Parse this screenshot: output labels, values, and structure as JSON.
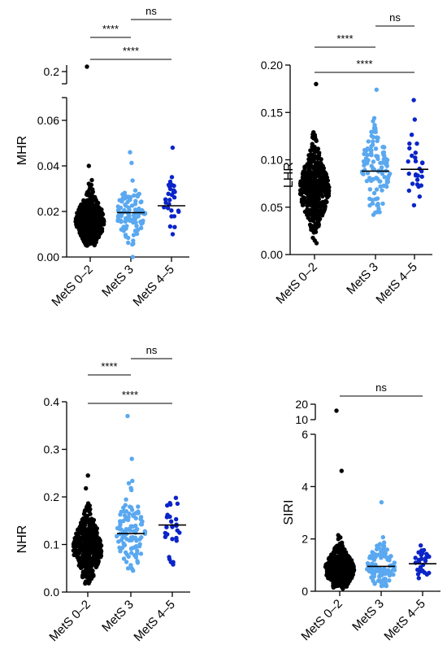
{
  "chart_data": [
    {
      "type": "scatter",
      "ylabel": "MHR",
      "categories": [
        "MetS 0–2",
        "MetS 3",
        "MetS 4–5"
      ],
      "colors": [
        "#000000",
        "#5aa8f0",
        "#0a24c8"
      ],
      "ylim": [
        0,
        0.07
      ],
      "axis_break": {
        "lower_max": 0.07,
        "upper_tick": 0.2
      },
      "yticks": [
        0.0,
        0.02,
        0.04,
        0.06
      ],
      "ytick_labels": [
        "0.00",
        "0.02",
        "0.04",
        "0.06"
      ],
      "upper_tick_label": "0.2",
      "medians": [
        0.016,
        0.0195,
        0.0225
      ],
      "series": [
        {
          "n": 430,
          "min": 0.005,
          "max": 0.04,
          "q1": 0.012,
          "median": 0.016,
          "q3": 0.02,
          "outliers": [
            0.22
          ]
        },
        {
          "n": 110,
          "min": 0.0,
          "max": 0.046,
          "q1": 0.015,
          "median": 0.0195,
          "q3": 0.024,
          "outliers": []
        },
        {
          "n": 28,
          "min": 0.01,
          "max": 0.048,
          "q1": 0.018,
          "median": 0.0225,
          "q3": 0.026,
          "outliers": []
        }
      ],
      "significance": [
        {
          "from": 0,
          "to": 1,
          "label": "****"
        },
        {
          "from": 1,
          "to": 2,
          "label": "ns"
        },
        {
          "from": 0,
          "to": 2,
          "label": "****"
        }
      ]
    },
    {
      "type": "scatter",
      "ylabel": "LHR",
      "categories": [
        "MetS 0–2",
        "MetS 3",
        "MetS 4–5"
      ],
      "colors": [
        "#000000",
        "#5aa8f0",
        "#0a24c8"
      ],
      "ylim": [
        0,
        0.2
      ],
      "yticks": [
        0.0,
        0.05,
        0.1,
        0.15,
        0.2
      ],
      "ytick_labels": [
        "0.00",
        "0.05",
        "0.10",
        "0.15",
        "0.20"
      ],
      "medians": [
        0.069,
        0.088,
        0.09
      ],
      "series": [
        {
          "n": 430,
          "min": 0.012,
          "max": 0.18,
          "q1": 0.055,
          "median": 0.069,
          "q3": 0.084,
          "outliers": []
        },
        {
          "n": 110,
          "min": 0.042,
          "max": 0.174,
          "q1": 0.072,
          "median": 0.088,
          "q3": 0.104,
          "outliers": []
        },
        {
          "n": 28,
          "min": 0.052,
          "max": 0.163,
          "q1": 0.075,
          "median": 0.09,
          "q3": 0.11,
          "outliers": []
        }
      ],
      "significance": [
        {
          "from": 0,
          "to": 1,
          "label": "****"
        },
        {
          "from": 1,
          "to": 2,
          "label": "ns"
        },
        {
          "from": 0,
          "to": 2,
          "label": "****"
        }
      ]
    },
    {
      "type": "scatter",
      "ylabel": "NHR",
      "categories": [
        "MetS 0–2",
        "MetS 3",
        "MetS 4–5"
      ],
      "colors": [
        "#000000",
        "#5aa8f0",
        "#0a24c8"
      ],
      "ylim": [
        0,
        0.4
      ],
      "yticks": [
        0.0,
        0.1,
        0.2,
        0.3,
        0.4
      ],
      "ytick_labels": [
        "0.0",
        "0.1",
        "0.2",
        "0.3",
        "0.4"
      ],
      "medians": [
        0.093,
        0.123,
        0.141
      ],
      "series": [
        {
          "n": 430,
          "min": 0.018,
          "max": 0.245,
          "q1": 0.07,
          "median": 0.093,
          "q3": 0.118,
          "outliers": []
        },
        {
          "n": 110,
          "min": 0.045,
          "max": 0.28,
          "q1": 0.095,
          "median": 0.123,
          "q3": 0.15,
          "outliers": [
            0.37
          ]
        },
        {
          "n": 28,
          "min": 0.058,
          "max": 0.198,
          "q1": 0.112,
          "median": 0.141,
          "q3": 0.168,
          "outliers": []
        }
      ],
      "significance": [
        {
          "from": 0,
          "to": 1,
          "label": "****"
        },
        {
          "from": 1,
          "to": 2,
          "label": "ns"
        },
        {
          "from": 0,
          "to": 2,
          "label": "****"
        }
      ]
    },
    {
      "type": "scatter",
      "ylabel": "SIRI",
      "categories": [
        "MetS 0–2",
        "MetS 3",
        "MetS 4–5"
      ],
      "colors": [
        "#000000",
        "#5aa8f0",
        "#0a24c8"
      ],
      "ylim": [
        0,
        6
      ],
      "axis_break": {
        "lower_max": 6,
        "upper_ticks": [
          10,
          20
        ]
      },
      "yticks": [
        0,
        2,
        4,
        6
      ],
      "ytick_labels": [
        "0",
        "2",
        "4",
        "6"
      ],
      "upper_tick_labels": [
        "10",
        "20"
      ],
      "medians": [
        0.85,
        0.95,
        1.05
      ],
      "series": [
        {
          "n": 430,
          "min": 0.1,
          "max": 4.6,
          "q1": 0.6,
          "median": 0.85,
          "q3": 1.2,
          "outliers": [
            17
          ]
        },
        {
          "n": 110,
          "min": 0.2,
          "max": 3.4,
          "q1": 0.7,
          "median": 0.95,
          "q3": 1.3,
          "outliers": []
        },
        {
          "n": 28,
          "min": 0.5,
          "max": 1.75,
          "q1": 0.8,
          "median": 1.05,
          "q3": 1.35,
          "outliers": []
        }
      ],
      "significance": [
        {
          "from": 0,
          "to": 2,
          "label": "ns"
        }
      ]
    }
  ]
}
